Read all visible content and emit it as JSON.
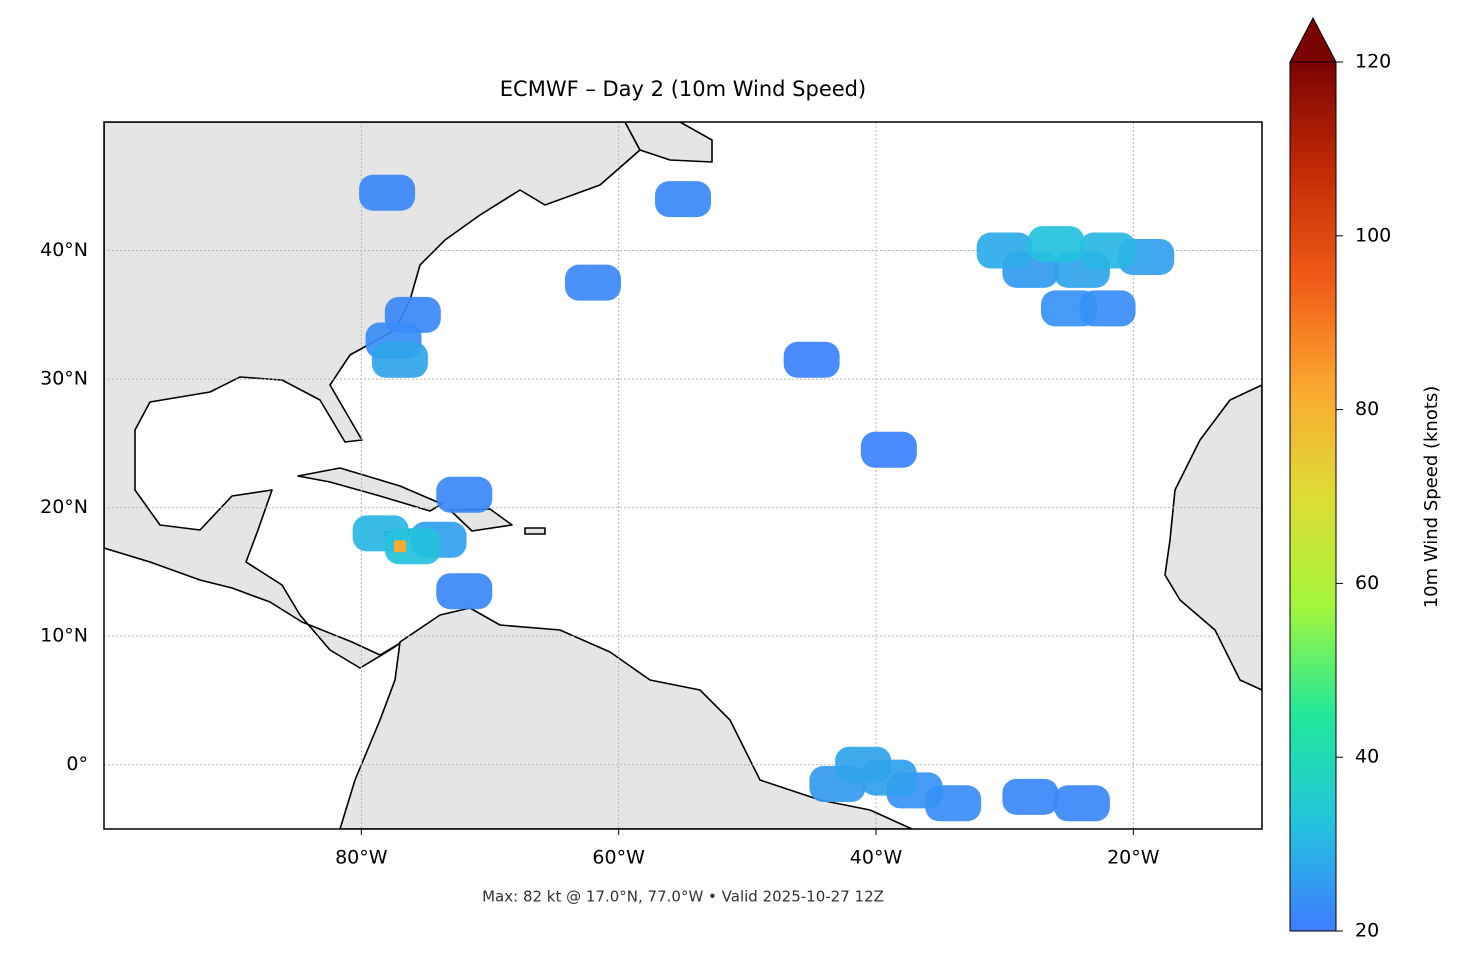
{
  "chart_data": {
    "type": "map",
    "title": "ECMWF – Day 2 (10m Wind Speed)",
    "footer": "Max: 82 kt @ 17.0°N, 77.0°W • Valid 2025-10-27 12Z",
    "xlim": [
      -100,
      -10
    ],
    "ylim": [
      -5,
      50
    ],
    "xticks": [
      {
        "value": -80,
        "label": "80°W"
      },
      {
        "value": -60,
        "label": "60°W"
      },
      {
        "value": -40,
        "label": "40°W"
      },
      {
        "value": -20,
        "label": "20°W"
      }
    ],
    "yticks": [
      {
        "value": 0,
        "label": "0°"
      },
      {
        "value": 10,
        "label": "10°N"
      },
      {
        "value": 20,
        "label": "20°N"
      },
      {
        "value": 30,
        "label": "30°N"
      },
      {
        "value": 40,
        "label": "40°N"
      }
    ],
    "grid": true,
    "colorbar": {
      "label": "10m Wind Speed (knots)",
      "lim": [
        20,
        120
      ],
      "ticks": [
        20,
        40,
        60,
        80,
        100,
        120
      ],
      "colors": [
        "#3e7cff",
        "#23c4dc",
        "#22e89a",
        "#a4f63a",
        "#dedc36",
        "#fba830",
        "#f05a16",
        "#c32a05",
        "#7a0403"
      ]
    },
    "series": [
      {
        "name": "10m wind speed",
        "x": [
          -30,
          -26,
          -22,
          -19,
          -28,
          -24,
          -25,
          -22,
          -77,
          -77.5,
          -76,
          -78.5,
          -76,
          -77,
          -74,
          -72,
          -41,
          -39,
          -37,
          -43,
          -34,
          -24,
          -28,
          -62,
          -55,
          -45,
          -39,
          -72,
          -78
        ],
        "y": [
          40,
          40.5,
          40,
          39.5,
          38.5,
          38.5,
          35.5,
          35.5,
          31.5,
          33,
          35,
          18,
          17,
          17,
          17.5,
          13.5,
          0,
          -1,
          -2,
          -1.5,
          -3,
          -3,
          -2.5,
          37.5,
          44,
          31.5,
          24.5,
          21,
          44.5
        ],
        "values": [
          28,
          32,
          30,
          26,
          25,
          27,
          24,
          23,
          27,
          23,
          22,
          30,
          32,
          82,
          26,
          22,
          27,
          26,
          24,
          25,
          23,
          22,
          22,
          22,
          22,
          21,
          21,
          22,
          22
        ]
      }
    ]
  }
}
